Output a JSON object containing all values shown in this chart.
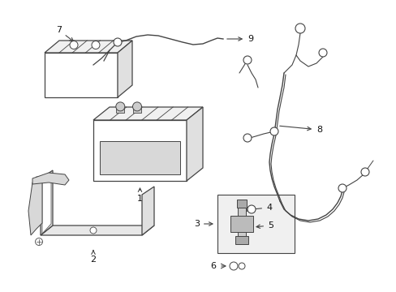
{
  "bg_color": "#ffffff",
  "line_color": "#444444",
  "figsize": [
    4.89,
    3.6
  ],
  "dpi": 100,
  "arrow_color": "#444444",
  "lw": 0.9
}
